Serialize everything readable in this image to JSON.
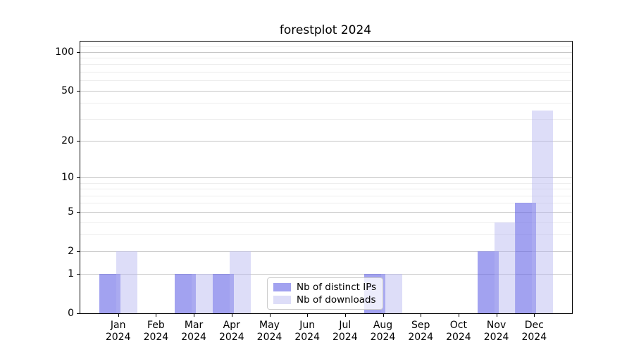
{
  "figure": {
    "background": "#ffffff",
    "axis_color": "#000000",
    "grid_major_color": "#c6c6c6",
    "grid_minor_color": "#ededed"
  },
  "chart_data": {
    "type": "bar",
    "title": "forestplot 2024",
    "categories": [
      "Jan",
      "Feb",
      "Mar",
      "Apr",
      "May",
      "Jun",
      "Jul",
      "Aug",
      "Sep",
      "Oct",
      "Nov",
      "Dec"
    ],
    "category_year": "2024",
    "series": [
      {
        "name": "Nb of distinct IPs",
        "color": "#a2a2f0",
        "fill": "rgba(100,100,230,0.6)",
        "values": [
          1,
          0,
          1,
          1,
          0,
          0,
          0,
          1,
          0,
          0,
          2,
          6
        ]
      },
      {
        "name": "Nb of downloads",
        "color": "#ddddf8",
        "fill": "rgba(180,180,240,0.45)",
        "values": [
          2,
          0,
          1,
          2,
          0,
          0,
          0,
          1,
          0,
          0,
          4,
          35
        ]
      }
    ],
    "yscale": "log1p",
    "ylim": [
      0,
      120
    ],
    "yticks_major": [
      0,
      1,
      2,
      5,
      10,
      20,
      50,
      100
    ],
    "yticks_minor": [
      3,
      4,
      6,
      7,
      8,
      9,
      30,
      40,
      60,
      70,
      80,
      90,
      110
    ],
    "grid": true,
    "legend_position": "lower center"
  }
}
